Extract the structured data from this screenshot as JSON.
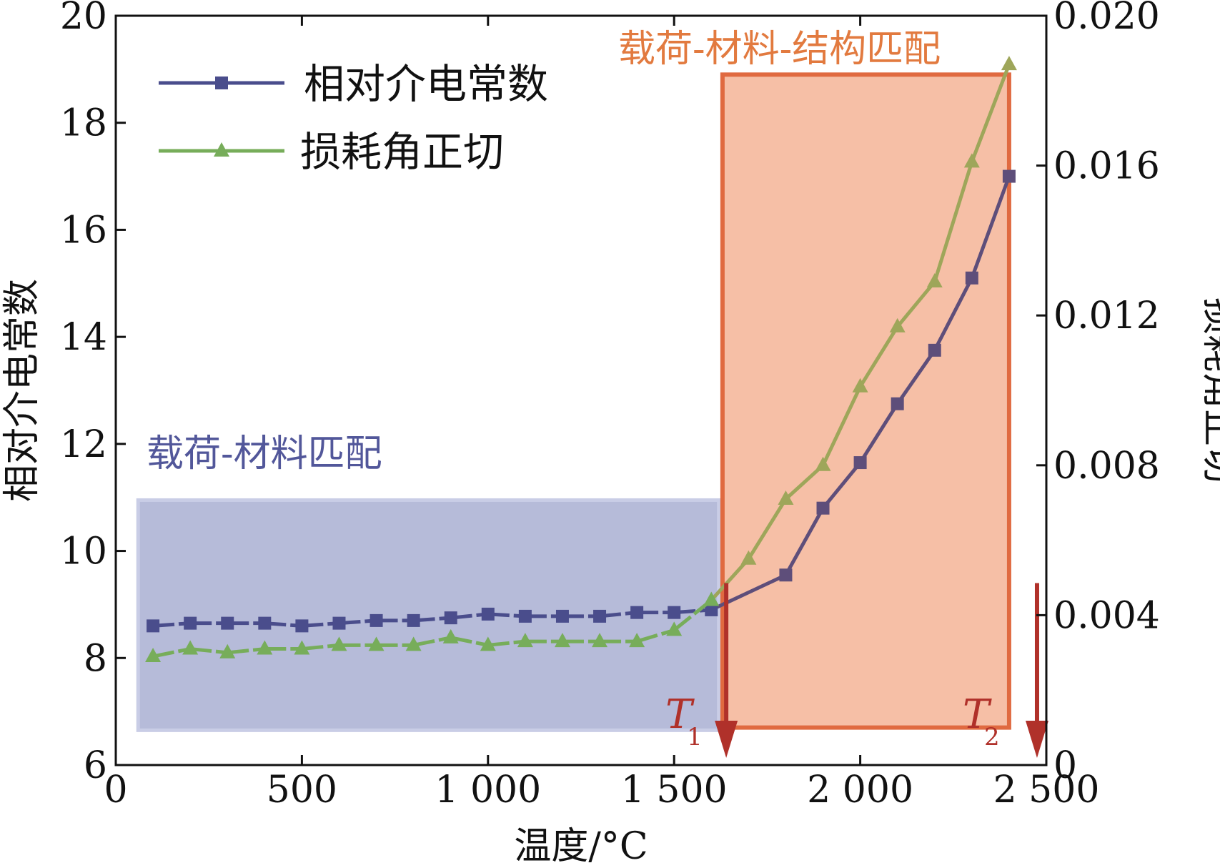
{
  "chart_data": {
    "type": "line",
    "x_axis": {
      "label": "温度/°C",
      "range": [
        0,
        2500
      ],
      "ticks": [
        0,
        500,
        1000,
        1500,
        2000,
        2500
      ],
      "tick_labels": [
        "0",
        "500",
        "1 000",
        "1 500",
        "2 000",
        "2 500"
      ]
    },
    "y_left": {
      "label": "相对介电常数",
      "range": [
        6,
        20
      ],
      "ticks": [
        6,
        8,
        10,
        12,
        14,
        16,
        18,
        20
      ],
      "tick_labels": [
        "6",
        "8",
        "10",
        "12",
        "14",
        "16",
        "18",
        "20"
      ]
    },
    "y_right": {
      "label": "损耗角正切",
      "range": [
        0,
        0.02
      ],
      "ticks": [
        0,
        0.004,
        0.008,
        0.012,
        0.016,
        0.02
      ],
      "tick_labels": [
        "0",
        "0.004",
        "0.008",
        "0.012",
        "0.016",
        "0.020"
      ]
    },
    "legend": {
      "placement": "top-left"
    },
    "series": [
      {
        "name": "相对介电常数",
        "axis": "left",
        "marker": "square",
        "color": "#4a4d8c",
        "segment_colors": [
          "#4a4d8c",
          "#5e4e7a"
        ],
        "x": [
          100,
          200,
          300,
          400,
          500,
          600,
          700,
          800,
          900,
          1000,
          1100,
          1200,
          1300,
          1400,
          1500,
          1600,
          1800,
          1900,
          2000,
          2100,
          2200,
          2300,
          2400
        ],
        "y": [
          8.6,
          8.65,
          8.65,
          8.65,
          8.6,
          8.65,
          8.7,
          8.7,
          8.75,
          8.82,
          8.78,
          8.78,
          8.78,
          8.85,
          8.85,
          8.9,
          9.55,
          10.8,
          11.65,
          12.75,
          13.75,
          15.1,
          17.0
        ]
      },
      {
        "name": "损耗角正切",
        "axis": "right",
        "marker": "triangle",
        "color": "#77ad5a",
        "segment_colors": [
          "#77ad5a",
          "#9ea65a"
        ],
        "x": [
          100,
          200,
          300,
          400,
          500,
          600,
          700,
          800,
          900,
          1000,
          1100,
          1200,
          1300,
          1400,
          1500,
          1600,
          1700,
          1800,
          1900,
          2000,
          2100,
          2200,
          2300,
          2400
        ],
        "y": [
          0.0029,
          0.0031,
          0.003,
          0.0031,
          0.0031,
          0.0032,
          0.0032,
          0.0032,
          0.0034,
          0.0032,
          0.0033,
          0.0033,
          0.0033,
          0.0033,
          0.0036,
          0.0044,
          0.0055,
          0.0071,
          0.008,
          0.0101,
          0.0117,
          0.0129,
          0.0161,
          0.0187
        ]
      }
    ],
    "regions": [
      {
        "name": "load-material-match-region",
        "label": "载荷-材料匹配",
        "x_range": [
          60,
          1620
        ],
        "y_range": [
          6.65,
          10.95
        ],
        "fill": "#9ea4cc",
        "label_color": "#52579a"
      },
      {
        "name": "load-material-structure-match-region",
        "label": "载荷-材料-结构匹配",
        "x_range": [
          1630,
          2400
        ],
        "y_range": [
          6.7,
          18.9
        ],
        "fill": "#f5b89c",
        "stroke": "#e06a40",
        "label_color": "#e27a3f"
      }
    ],
    "markers": [
      {
        "name": "T1",
        "label": "T",
        "subscript": "1",
        "x": 1640
      },
      {
        "name": "T2",
        "label": "T",
        "subscript": "2",
        "x": 2475
      }
    ],
    "marker_color": "#b0312a"
  }
}
